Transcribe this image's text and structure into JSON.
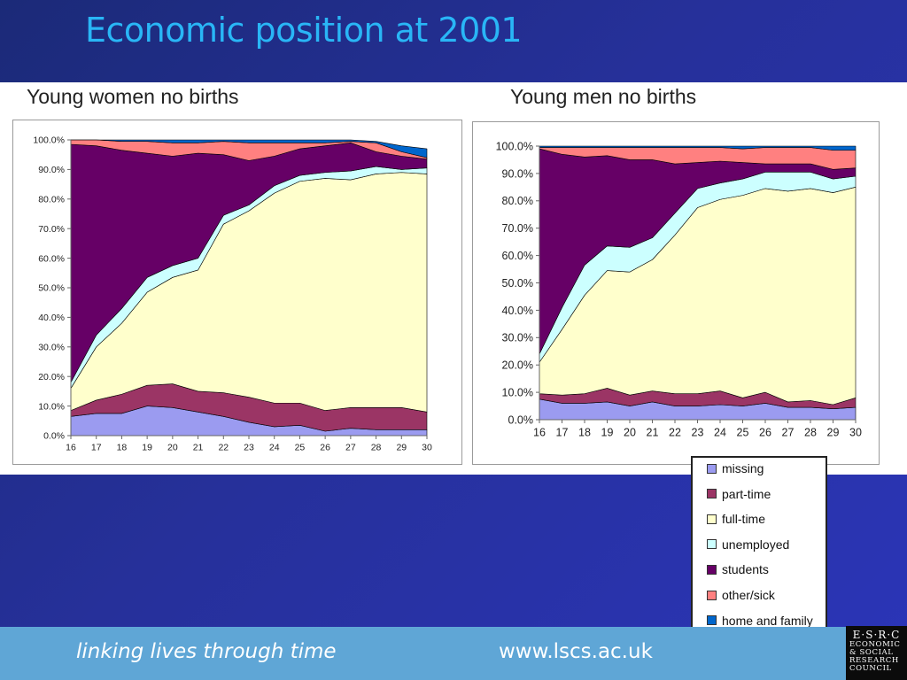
{
  "slide": {
    "title": "Economic position at 2001"
  },
  "footer": {
    "tagline": "linking lives through time",
    "url": "www.lscs.ac.uk"
  },
  "logo": {
    "line1": "E·S·R·C",
    "lines": [
      "ECONOMIC",
      "& SOCIAL",
      "RESEARCH",
      "COUNCIL"
    ]
  },
  "legend": {
    "items": [
      {
        "label": "missing",
        "color": "#9b9bf0"
      },
      {
        "label": "part-time",
        "color": "#9b3565"
      },
      {
        "label": "full-time",
        "color": "#ffffcc"
      },
      {
        "label": "unemployed",
        "color": "#ccffff"
      },
      {
        "label": "students",
        "color": "#660066"
      },
      {
        "label": "other/sick",
        "color": "#ff8080"
      },
      {
        "label": "home and family",
        "color": "#0066cc"
      }
    ]
  },
  "chart_data": [
    {
      "type": "area",
      "title": "Young women no births",
      "x": [
        16,
        17,
        18,
        19,
        20,
        21,
        22,
        23,
        24,
        25,
        26,
        27,
        28,
        29,
        30
      ],
      "y_ticks": [
        "0.0%",
        "10.0%",
        "20.0%",
        "30.0%",
        "40.0%",
        "50.0%",
        "60.0%",
        "70.0%",
        "80.0%",
        "90.0%",
        "100.0%"
      ],
      "ylim": [
        0,
        100
      ],
      "stacked": true,
      "series": [
        {
          "name": "missing",
          "values": [
            6.5,
            7.5,
            7.5,
            10,
            9.5,
            8,
            6.5,
            4.5,
            3,
            3.5,
            1.5,
            2.5,
            2,
            2,
            2
          ]
        },
        {
          "name": "part-time",
          "values": [
            2,
            4.5,
            6.5,
            7,
            8,
            7,
            8,
            8.5,
            8,
            7.5,
            7,
            7,
            7.5,
            7.5,
            6
          ]
        },
        {
          "name": "full-time",
          "values": [
            7.5,
            18,
            24,
            31.5,
            36,
            41,
            57,
            63,
            71,
            75,
            78.5,
            77,
            79,
            79.5,
            80.5
          ]
        },
        {
          "name": "unemployed",
          "values": [
            2,
            4,
            5,
            5,
            4,
            4,
            3,
            2,
            2.5,
            2,
            2,
            3,
            2.5,
            1,
            2
          ]
        },
        {
          "name": "students",
          "values": [
            80.5,
            64,
            53.5,
            42,
            37,
            35.5,
            20.5,
            15,
            10,
            9,
            9,
            9.5,
            5,
            4.5,
            3
          ]
        },
        {
          "name": "other/sick",
          "values": [
            1.5,
            2,
            3,
            4,
            4.5,
            3.5,
            4.5,
            6,
            4.5,
            2,
            1,
            0.5,
            3,
            1.5,
            0.5
          ]
        },
        {
          "name": "home and family",
          "values": [
            0,
            0,
            0.5,
            0.5,
            1,
            1,
            0.5,
            1,
            1,
            1,
            1,
            0.5,
            0.5,
            2,
            3
          ]
        }
      ]
    },
    {
      "type": "area",
      "title": "Young men no births",
      "x": [
        16,
        17,
        18,
        19,
        20,
        21,
        22,
        23,
        24,
        25,
        26,
        27,
        28,
        29,
        30
      ],
      "y_ticks": [
        "0.0%",
        "10.0%",
        "20.0%",
        "30.0%",
        "40.0%",
        "50.0%",
        "60.0%",
        "70.0%",
        "80.0%",
        "90.0%",
        "100.0%"
      ],
      "ylim": [
        0,
        100
      ],
      "stacked": true,
      "series": [
        {
          "name": "missing",
          "values": [
            7.5,
            6,
            6,
            6.5,
            5,
            6.5,
            5,
            5,
            5.5,
            5,
            6,
            4.5,
            4.5,
            4,
            4.5
          ]
        },
        {
          "name": "part-time",
          "values": [
            2,
            3,
            3.5,
            5,
            4,
            4,
            4.5,
            4.5,
            5,
            3,
            4,
            2,
            2.5,
            1.5,
            3.5
          ]
        },
        {
          "name": "full-time",
          "values": [
            11.5,
            24,
            36,
            43,
            45,
            48,
            58,
            68,
            70,
            74,
            74.5,
            77,
            77.5,
            77.5,
            77
          ]
        },
        {
          "name": "unemployed",
          "values": [
            3,
            8,
            11,
            9,
            9,
            8,
            8,
            7,
            6,
            6,
            6,
            7,
            6,
            5,
            4
          ]
        },
        {
          "name": "students",
          "values": [
            75,
            56,
            39.5,
            33,
            32,
            28.5,
            18,
            9.5,
            8,
            6,
            3,
            3,
            3,
            3.5,
            3
          ]
        },
        {
          "name": "other/sick",
          "values": [
            0.5,
            2.5,
            3.5,
            3,
            4.5,
            4.5,
            6,
            5.5,
            5,
            5,
            6,
            6,
            6,
            7,
            6.5
          ]
        },
        {
          "name": "home and family",
          "values": [
            0.5,
            0.5,
            0.5,
            0.5,
            0.5,
            0.5,
            0.5,
            0.5,
            0.5,
            1,
            0.5,
            0.5,
            0.5,
            1.5,
            1.5
          ]
        }
      ]
    }
  ]
}
